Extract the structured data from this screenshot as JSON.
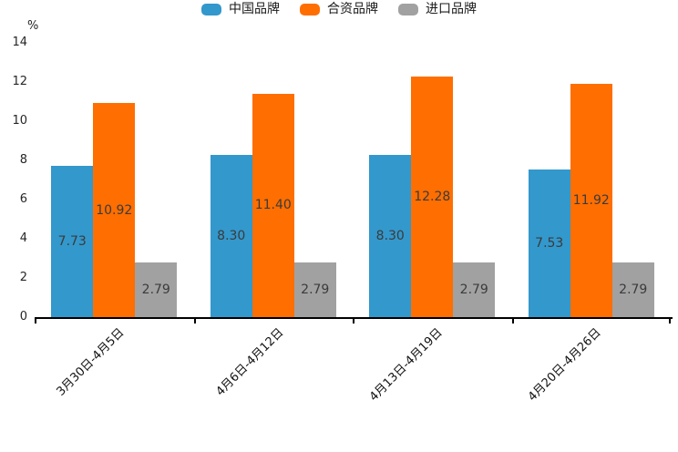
{
  "chart_data": {
    "type": "bar",
    "title": "",
    "categories": [
      "3月30日-4月5日",
      "4月6日-4月12日",
      "4月13日-4月19日",
      "4月20日-4月26日"
    ],
    "series": [
      {
        "name": "中国品牌",
        "color": "#3398CC",
        "values": [
          7.73,
          8.3,
          8.3,
          7.53
        ]
      },
      {
        "name": "合资品牌",
        "color": "#FF6E00",
        "values": [
          10.92,
          11.4,
          12.28,
          11.92
        ]
      },
      {
        "name": "进口品牌",
        "color": "#A1A1A1",
        "values": [
          2.79,
          2.79,
          2.79,
          2.79
        ]
      }
    ],
    "xlabel": "",
    "ylabel": "%",
    "ylim": [
      0,
      14
    ],
    "yticks": [
      0,
      2,
      4,
      6,
      8,
      10,
      12,
      14
    ],
    "grid": false,
    "legend_position": "top",
    "value_label_decimals": 2,
    "value_label_color": "#3b3b3b",
    "axis_color": "#000000",
    "xtick_rotation_deg": -45
  }
}
